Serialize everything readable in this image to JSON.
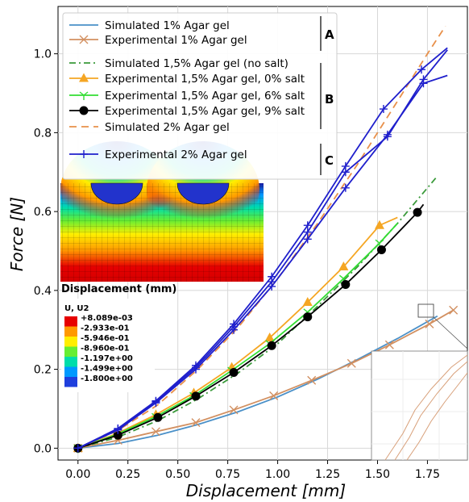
{
  "chart_data": {
    "type": "line",
    "xlabel": "Displacement [mm]",
    "ylabel": "Force [N]",
    "xlim": [
      -0.1,
      1.95
    ],
    "ylim": [
      -0.03,
      1.12
    ],
    "xticks": [
      "0.00",
      "0.25",
      "0.50",
      "0.75",
      "1.00",
      "1.25",
      "1.50",
      "1.75"
    ],
    "xtick_values": [
      0,
      0.25,
      0.5,
      0.75,
      1.0,
      1.25,
      1.5,
      1.75
    ],
    "yticks": [
      "0.0",
      "0.2",
      "0.4",
      "0.6",
      "0.8",
      "1.0"
    ],
    "ytick_values": [
      0,
      0.2,
      0.4,
      0.6,
      0.8,
      1.0
    ],
    "grid": true,
    "legend_position": "top-left",
    "legend_groups": [
      "A",
      "B",
      "C"
    ],
    "series": [
      {
        "name": "Simulated 1% Agar gel",
        "color": "#4a90c8",
        "style": "solid",
        "marker": "none",
        "group": "A",
        "x": [
          0,
          0.2,
          0.4,
          0.6,
          0.8,
          1.0,
          1.2,
          1.4,
          1.6,
          1.8
        ],
        "y": [
          0,
          0.012,
          0.033,
          0.06,
          0.092,
          0.13,
          0.175,
          0.225,
          0.278,
          0.335
        ]
      },
      {
        "name": "Experimental 1% Agar gel",
        "color": "#d29061",
        "style": "solid",
        "marker": "x",
        "group": "A",
        "x": [
          0,
          0.2,
          0.39,
          0.59,
          0.78,
          0.98,
          1.17,
          1.37,
          1.56,
          1.76,
          1.88
        ],
        "y": [
          0,
          0.02,
          0.042,
          0.065,
          0.097,
          0.133,
          0.172,
          0.215,
          0.262,
          0.315,
          0.35
        ]
      },
      {
        "name": "Simulated 1,5% Agar gel (no salt)",
        "color": "#3a9a3a",
        "style": "dashdot",
        "marker": "none",
        "group": "B",
        "x": [
          0,
          0.2,
          0.4,
          0.6,
          0.8,
          1.0,
          1.2,
          1.4,
          1.6,
          1.8
        ],
        "y": [
          0,
          0.028,
          0.07,
          0.125,
          0.19,
          0.265,
          0.36,
          0.46,
          0.57,
          0.69
        ]
      },
      {
        "name": "Experimental 1,5% Agar gel, 0% salt",
        "color": "#f5a623",
        "style": "solid",
        "marker": "triangle",
        "group": "B",
        "x": [
          0,
          0.19,
          0.39,
          0.58,
          0.77,
          0.96,
          1.15,
          1.33,
          1.51,
          1.6
        ],
        "y": [
          0,
          0.036,
          0.085,
          0.14,
          0.205,
          0.28,
          0.37,
          0.46,
          0.565,
          0.585
        ]
      },
      {
        "name": "Experimental 1,5% Agar gel, 6% salt",
        "color": "#33dd33",
        "style": "solid",
        "marker": "tri-down",
        "group": "B",
        "x": [
          0,
          0.19,
          0.39,
          0.58,
          0.77,
          0.96,
          1.15,
          1.33,
          1.51,
          1.6
        ],
        "y": [
          0,
          0.034,
          0.08,
          0.133,
          0.197,
          0.265,
          0.345,
          0.43,
          0.52,
          0.57
        ]
      },
      {
        "name": "Experimental 1,5% Agar gel, 9% salt",
        "color": "#000000",
        "style": "solid",
        "marker": "circle",
        "group": "B",
        "x": [
          0,
          0.2,
          0.4,
          0.59,
          0.78,
          0.97,
          1.15,
          1.34,
          1.52,
          1.7,
          1.73
        ],
        "y": [
          0,
          0.033,
          0.078,
          0.132,
          0.192,
          0.26,
          0.333,
          0.415,
          0.503,
          0.598,
          0.618
        ]
      },
      {
        "name": "Simulated 2% Agar gel",
        "color": "#e8904a",
        "style": "dashed",
        "marker": "none",
        "group": "C",
        "x": [
          0,
          0.2,
          0.4,
          0.6,
          0.8,
          1.0,
          1.2,
          1.4,
          1.6,
          1.75,
          1.84
        ],
        "y": [
          0,
          0.045,
          0.11,
          0.2,
          0.305,
          0.43,
          0.57,
          0.72,
          0.88,
          1.0,
          1.07
        ]
      },
      {
        "name": "Experimental 2% Agar gel",
        "color": "#1f1fcc",
        "style": "solid",
        "marker": "plus",
        "group": "C",
        "x": [
          0,
          0.2,
          0.39,
          0.59,
          0.78,
          0.97,
          1.15,
          1.34,
          1.53,
          1.72,
          1.85
        ],
        "y": [
          0,
          0.05,
          0.12,
          0.21,
          0.315,
          0.435,
          0.565,
          0.715,
          0.86,
          0.96,
          1.015
        ]
      },
      {
        "name": "",
        "color": "#1f1fcc",
        "style": "solid",
        "marker": "plus",
        "group": "C",
        "x": [
          0,
          0.2,
          0.39,
          0.59,
          0.78,
          0.97,
          1.15,
          1.34,
          1.55,
          1.73,
          1.85
        ],
        "y": [
          0,
          0.046,
          0.115,
          0.2,
          0.3,
          0.41,
          0.53,
          0.66,
          0.795,
          0.925,
          0.945
        ]
      },
      {
        "name": "",
        "color": "#1f1fcc",
        "style": "solid",
        "marker": "plus",
        "group": "C",
        "x": [
          0,
          0.2,
          0.39,
          0.59,
          0.78,
          0.97,
          1.15,
          1.34,
          1.55,
          1.73,
          1.85
        ],
        "y": [
          0,
          0.048,
          0.118,
          0.205,
          0.308,
          0.422,
          0.548,
          0.7,
          0.79,
          0.935,
          1.01
        ]
      }
    ],
    "inset": {
      "title": "Displacement (mm)",
      "legend_title": "U, U2",
      "levels": [
        "+8.089e-03",
        "-2.933e-01",
        "-5.946e-01",
        "-8.960e-01",
        "-1.197e+00",
        "-1.499e+00",
        "-1.800e+00"
      ],
      "colors": [
        "#e60000",
        "#ff9900",
        "#ffee00",
        "#66ee33",
        "#00ddaa",
        "#0099ff",
        "#1f3fdd",
        "#1a1aa0"
      ]
    }
  }
}
